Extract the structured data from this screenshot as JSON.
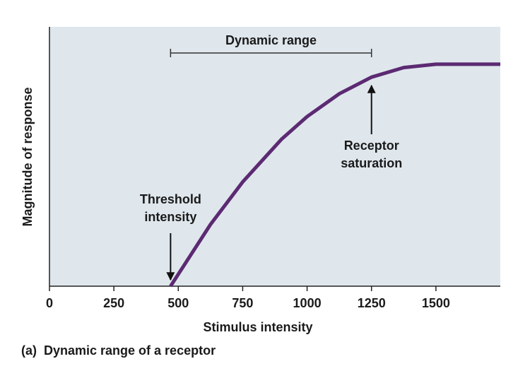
{
  "chart_data": {
    "type": "line",
    "xlabel": "Stimulus intensity",
    "ylabel": "Magnitude of response",
    "x": [
      470,
      625,
      750,
      900,
      1000,
      1125,
      1250,
      1375,
      1500,
      1750
    ],
    "series": [
      {
        "color": "#5c2a72",
        "values": [
          0,
          23.8,
          40.2,
          56.6,
          65.4,
          74.2,
          80.6,
          84.3,
          85.6,
          85.6
        ]
      }
    ],
    "xlim": [
      0,
      1750
    ],
    "ylim": [
      0,
      100
    ],
    "xticks": [
      0,
      250,
      500,
      750,
      1000,
      1250,
      1500
    ],
    "dynamic_range": {
      "label": "Dynamic range",
      "x": [
        470,
        1250
      ]
    },
    "threshold": {
      "label": [
        "Threshold",
        "intensity"
      ],
      "x": 470
    },
    "saturation": {
      "label": [
        "Receptor",
        "saturation"
      ],
      "x": 1250
    },
    "caption_letter": "(a)",
    "caption": "Dynamic range of a receptor"
  }
}
